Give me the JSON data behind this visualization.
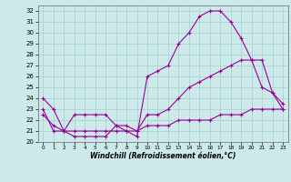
{
  "xlabel": "Windchill (Refroidissement éolien,°C)",
  "bg_color": "#cceaea",
  "line_color": "#990099",
  "xlim": [
    -0.5,
    23.5
  ],
  "ylim": [
    20,
    32.5
  ],
  "xticks": [
    0,
    1,
    2,
    3,
    4,
    5,
    6,
    7,
    8,
    9,
    10,
    11,
    12,
    13,
    14,
    15,
    16,
    17,
    18,
    19,
    20,
    21,
    22,
    23
  ],
  "yticks": [
    20,
    21,
    22,
    23,
    24,
    25,
    26,
    27,
    28,
    29,
    30,
    31,
    32
  ],
  "line1_x": [
    0,
    1,
    2,
    3,
    4,
    5,
    6,
    7,
    8,
    9,
    10,
    11,
    12,
    13,
    14,
    15,
    16,
    17,
    18,
    19,
    20,
    21,
    22,
    23
  ],
  "line1_y": [
    24,
    23,
    21,
    20.5,
    20.5,
    20.5,
    20.5,
    21.5,
    21,
    20.5,
    26,
    26.5,
    27,
    29,
    30,
    31.5,
    32,
    32,
    31,
    29.5,
    27.5,
    27.5,
    24.5,
    23
  ],
  "line2_x": [
    0,
    1,
    2,
    3,
    4,
    5,
    6,
    7,
    8,
    9,
    10,
    11,
    12,
    13,
    14,
    15,
    16,
    17,
    18,
    19,
    20,
    21,
    22,
    23
  ],
  "line2_y": [
    23,
    21,
    21,
    22.5,
    22.5,
    22.5,
    22.5,
    21.5,
    21.5,
    21,
    22.5,
    22.5,
    23,
    24,
    25,
    25.5,
    26,
    26.5,
    27,
    27.5,
    27.5,
    25,
    24.5,
    23.5
  ],
  "line3_x": [
    0,
    1,
    2,
    3,
    4,
    5,
    6,
    7,
    8,
    9,
    10,
    11,
    12,
    13,
    14,
    15,
    16,
    17,
    18,
    19,
    20,
    21,
    22,
    23
  ],
  "line3_y": [
    22.5,
    21.5,
    21,
    21,
    21,
    21,
    21,
    21,
    21,
    21,
    21.5,
    21.5,
    21.5,
    22,
    22,
    22,
    22,
    22.5,
    22.5,
    22.5,
    23,
    23,
    23,
    23
  ]
}
